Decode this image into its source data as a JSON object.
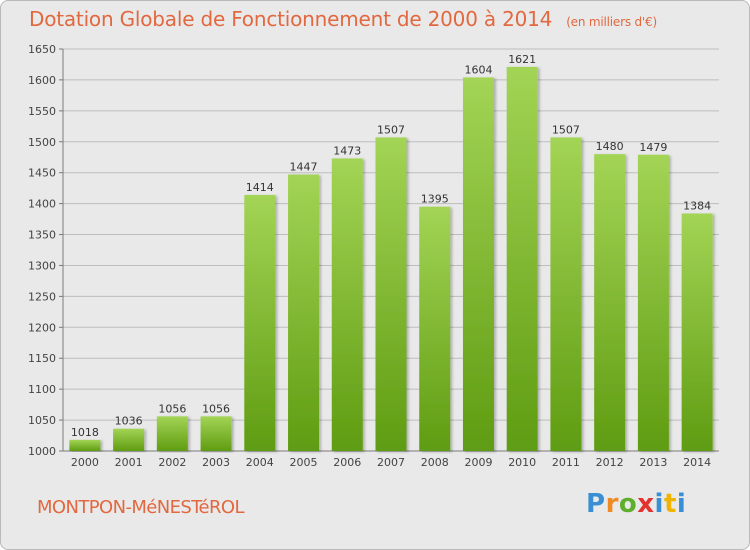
{
  "title": "Dotation Globale de Fonctionnement de 2000 à 2014",
  "unit_note": "(en milliers d'€)",
  "commune": "MONTPON-MéNESTéROL",
  "logo": {
    "letters": [
      "P",
      "r",
      "o",
      "x",
      "i",
      "t",
      "i"
    ],
    "colors": [
      "#3a8fd4",
      "#f08a24",
      "#5fae2e",
      "#e3322d",
      "#3a8fd4",
      "#f0b400",
      "#3a8fd4"
    ]
  },
  "colors": {
    "title": "#e2683f",
    "bar_top": "#a3d455",
    "bar_bottom": "#5f9c12",
    "background": "#e9e9e9"
  },
  "chart_data": {
    "type": "bar",
    "categories": [
      "2000",
      "2001",
      "2002",
      "2003",
      "2004",
      "2005",
      "2006",
      "2007",
      "2008",
      "2009",
      "2010",
      "2011",
      "2012",
      "2013",
      "2014"
    ],
    "values": [
      1018,
      1036,
      1056,
      1056,
      1414,
      1447,
      1473,
      1507,
      1395,
      1604,
      1621,
      1507,
      1480,
      1479,
      1384
    ],
    "yticks": [
      1000,
      1050,
      1100,
      1150,
      1200,
      1250,
      1300,
      1350,
      1400,
      1450,
      1500,
      1550,
      1600,
      1650
    ],
    "ylim": [
      1000,
      1650
    ],
    "grid": true,
    "xlabel": "",
    "ylabel": ""
  }
}
